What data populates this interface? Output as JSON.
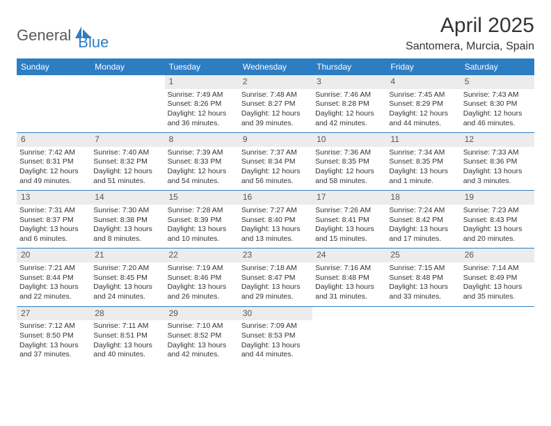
{
  "logo": {
    "part1": "General",
    "part2": "Blue",
    "accent_color": "#2d7dc3",
    "gray_color": "#58595b"
  },
  "title": "April 2025",
  "location": "Santomera, Murcia, Spain",
  "colors": {
    "header_bg": "#2d7dc3",
    "header_fg": "#ffffff",
    "daynum_bg": "#ececec",
    "border": "#2d7dc3",
    "text": "#333333"
  },
  "weekdays": [
    "Sunday",
    "Monday",
    "Tuesday",
    "Wednesday",
    "Thursday",
    "Friday",
    "Saturday"
  ],
  "weeks": [
    [
      null,
      null,
      {
        "n": "1",
        "sunrise": "7:49 AM",
        "sunset": "8:26 PM",
        "daylight": "12 hours and 36 minutes."
      },
      {
        "n": "2",
        "sunrise": "7:48 AM",
        "sunset": "8:27 PM",
        "daylight": "12 hours and 39 minutes."
      },
      {
        "n": "3",
        "sunrise": "7:46 AM",
        "sunset": "8:28 PM",
        "daylight": "12 hours and 42 minutes."
      },
      {
        "n": "4",
        "sunrise": "7:45 AM",
        "sunset": "8:29 PM",
        "daylight": "12 hours and 44 minutes."
      },
      {
        "n": "5",
        "sunrise": "7:43 AM",
        "sunset": "8:30 PM",
        "daylight": "12 hours and 46 minutes."
      }
    ],
    [
      {
        "n": "6",
        "sunrise": "7:42 AM",
        "sunset": "8:31 PM",
        "daylight": "12 hours and 49 minutes."
      },
      {
        "n": "7",
        "sunrise": "7:40 AM",
        "sunset": "8:32 PM",
        "daylight": "12 hours and 51 minutes."
      },
      {
        "n": "8",
        "sunrise": "7:39 AM",
        "sunset": "8:33 PM",
        "daylight": "12 hours and 54 minutes."
      },
      {
        "n": "9",
        "sunrise": "7:37 AM",
        "sunset": "8:34 PM",
        "daylight": "12 hours and 56 minutes."
      },
      {
        "n": "10",
        "sunrise": "7:36 AM",
        "sunset": "8:35 PM",
        "daylight": "12 hours and 58 minutes."
      },
      {
        "n": "11",
        "sunrise": "7:34 AM",
        "sunset": "8:35 PM",
        "daylight": "13 hours and 1 minute."
      },
      {
        "n": "12",
        "sunrise": "7:33 AM",
        "sunset": "8:36 PM",
        "daylight": "13 hours and 3 minutes."
      }
    ],
    [
      {
        "n": "13",
        "sunrise": "7:31 AM",
        "sunset": "8:37 PM",
        "daylight": "13 hours and 6 minutes."
      },
      {
        "n": "14",
        "sunrise": "7:30 AM",
        "sunset": "8:38 PM",
        "daylight": "13 hours and 8 minutes."
      },
      {
        "n": "15",
        "sunrise": "7:28 AM",
        "sunset": "8:39 PM",
        "daylight": "13 hours and 10 minutes."
      },
      {
        "n": "16",
        "sunrise": "7:27 AM",
        "sunset": "8:40 PM",
        "daylight": "13 hours and 13 minutes."
      },
      {
        "n": "17",
        "sunrise": "7:26 AM",
        "sunset": "8:41 PM",
        "daylight": "13 hours and 15 minutes."
      },
      {
        "n": "18",
        "sunrise": "7:24 AM",
        "sunset": "8:42 PM",
        "daylight": "13 hours and 17 minutes."
      },
      {
        "n": "19",
        "sunrise": "7:23 AM",
        "sunset": "8:43 PM",
        "daylight": "13 hours and 20 minutes."
      }
    ],
    [
      {
        "n": "20",
        "sunrise": "7:21 AM",
        "sunset": "8:44 PM",
        "daylight": "13 hours and 22 minutes."
      },
      {
        "n": "21",
        "sunrise": "7:20 AM",
        "sunset": "8:45 PM",
        "daylight": "13 hours and 24 minutes."
      },
      {
        "n": "22",
        "sunrise": "7:19 AM",
        "sunset": "8:46 PM",
        "daylight": "13 hours and 26 minutes."
      },
      {
        "n": "23",
        "sunrise": "7:18 AM",
        "sunset": "8:47 PM",
        "daylight": "13 hours and 29 minutes."
      },
      {
        "n": "24",
        "sunrise": "7:16 AM",
        "sunset": "8:48 PM",
        "daylight": "13 hours and 31 minutes."
      },
      {
        "n": "25",
        "sunrise": "7:15 AM",
        "sunset": "8:48 PM",
        "daylight": "13 hours and 33 minutes."
      },
      {
        "n": "26",
        "sunrise": "7:14 AM",
        "sunset": "8:49 PM",
        "daylight": "13 hours and 35 minutes."
      }
    ],
    [
      {
        "n": "27",
        "sunrise": "7:12 AM",
        "sunset": "8:50 PM",
        "daylight": "13 hours and 37 minutes."
      },
      {
        "n": "28",
        "sunrise": "7:11 AM",
        "sunset": "8:51 PM",
        "daylight": "13 hours and 40 minutes."
      },
      {
        "n": "29",
        "sunrise": "7:10 AM",
        "sunset": "8:52 PM",
        "daylight": "13 hours and 42 minutes."
      },
      {
        "n": "30",
        "sunrise": "7:09 AM",
        "sunset": "8:53 PM",
        "daylight": "13 hours and 44 minutes."
      },
      null,
      null,
      null
    ]
  ],
  "labels": {
    "sunrise": "Sunrise:",
    "sunset": "Sunset:",
    "daylight": "Daylight:"
  }
}
